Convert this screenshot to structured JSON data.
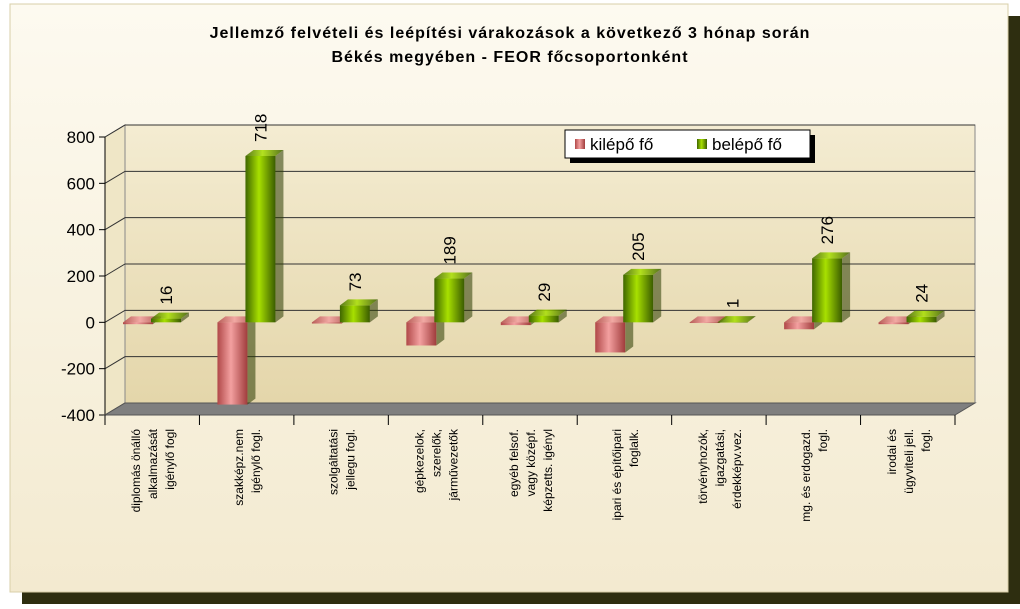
{
  "chart_data": {
    "type": "bar3d",
    "title": [
      "Jellemző felvételi és leépítési várakozások a következő 3 hónap során",
      "Békés megyében -  FEOR főcsoportonként"
    ],
    "categories": [
      [
        "diplomás önálló",
        "alkalmazását",
        "igénylő fogl"
      ],
      [
        "szakképz.nem",
        "igénylő fogl."
      ],
      [
        "szolgáltatási",
        "jellegu fogl."
      ],
      [
        "gépkezelok,",
        "szerelők,",
        "járművezetők"
      ],
      [
        "egyéb felsof.",
        "vagy középf.",
        "képzetts. igényl"
      ],
      [
        "ipari és építőipari",
        "foglalk."
      ],
      [
        "törvényhozók,",
        "igazgatási,",
        "érdekképv.vez."
      ],
      [
        "mg. és erdogazd.",
        "fogl."
      ],
      [
        "irodai és",
        "ügyviteli jell.",
        "fogl."
      ]
    ],
    "series": [
      {
        "name": "kilépő fő",
        "color": "#e07b7b",
        "values": [
          -8,
          -355,
          -5,
          -100,
          -12,
          -130,
          -3,
          -30,
          -8
        ]
      },
      {
        "name": "belépő fő",
        "color": "#7fb800",
        "values": [
          16,
          718,
          73,
          189,
          29,
          205,
          1,
          276,
          24
        ],
        "show_labels": true
      }
    ],
    "ylim": [
      -400,
      800
    ],
    "yticks": [
      -400,
      -200,
      0,
      200,
      400,
      600,
      800
    ],
    "grid": true,
    "legend": "top-right"
  }
}
